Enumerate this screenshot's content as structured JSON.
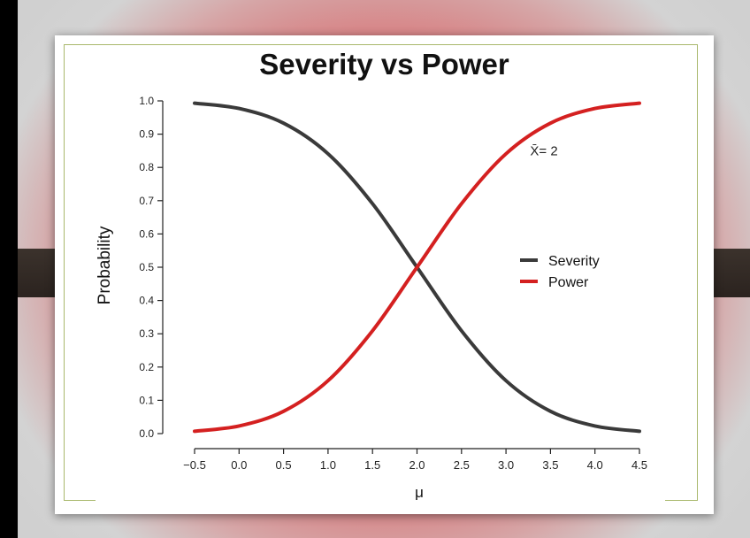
{
  "chart_data": {
    "type": "line",
    "title": "Severity vs Power",
    "xlabel": "μ",
    "ylabel": "Probability",
    "xlim": [
      -0.6,
      4.6
    ],
    "ylim": [
      0.0,
      1.0
    ],
    "xticks": [
      "−0.5",
      "0.0",
      "0.5",
      "1.0",
      "1.5",
      "2.0",
      "2.5",
      "3.0",
      "3.5",
      "4.0",
      "4.5"
    ],
    "yticks": [
      "0.0",
      "0.1",
      "0.2",
      "0.3",
      "0.4",
      "0.5",
      "0.6",
      "0.7",
      "0.8",
      "0.9",
      "1.0"
    ],
    "grid": false,
    "legend_position": "right",
    "x": [
      -0.5,
      0.0,
      0.5,
      1.0,
      1.5,
      2.0,
      2.5,
      3.0,
      3.5,
      4.0,
      4.5
    ],
    "series": [
      {
        "name": "Severity",
        "color": "#3a3a3a",
        "values": [
          0.993,
          0.977,
          0.933,
          0.841,
          0.691,
          0.5,
          0.309,
          0.159,
          0.067,
          0.023,
          0.007
        ]
      },
      {
        "name": "Power",
        "color": "#d42020",
        "values": [
          0.007,
          0.023,
          0.067,
          0.159,
          0.309,
          0.5,
          0.691,
          0.841,
          0.933,
          0.977,
          0.993
        ]
      }
    ],
    "annotation": {
      "text": "X̄= 2",
      "x": 3.5,
      "y": 0.85
    }
  }
}
